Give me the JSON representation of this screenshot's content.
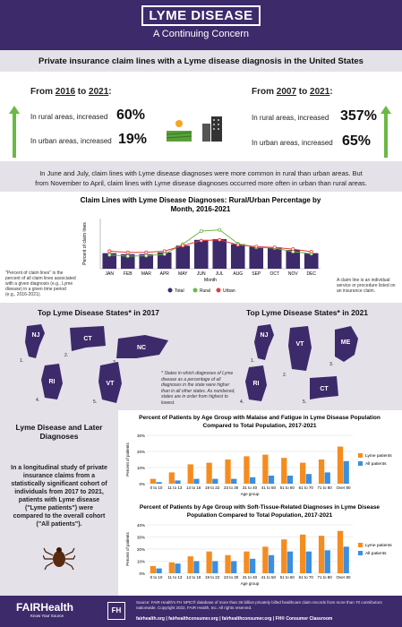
{
  "header": {
    "title": "LYME DISEASE",
    "subtitle": "A Continuing Concern"
  },
  "section1": {
    "title": "Private insurance claim lines with a Lyme disease diagnosis in the United States",
    "left": {
      "period_from": "2016",
      "period_to": "2021",
      "period_prefix": "From ",
      "period_mid": " to ",
      "period_suffix": ":",
      "rural_text": "In rural areas, increased",
      "rural_value": "60%",
      "urban_text": "In urban areas, increased",
      "urban_value": "19%"
    },
    "right": {
      "period_from": "2007",
      "period_to": "2021",
      "period_prefix": "From ",
      "period_mid": " to ",
      "period_suffix": ":",
      "rural_text": "In rural areas, increased",
      "rural_value": "357%",
      "urban_text": "In urban areas, increased",
      "urban_value": "65%"
    }
  },
  "section2": {
    "intro_line1": "In June and July, claim lines with Lyme disease diagnoses were more common in rural than urban areas. But",
    "intro_line2": "from November to April, claim lines with Lyme disease diagnoses occurred more often in urban than rural areas.",
    "note_left": "\"Percent of claim lines\" is the percent of all claim lines associated with a given diagnosis (e.g., Lyme disease) in a given time period (e.g., 2016-2021).",
    "note_right": "A claim line is an individual service or procedure listed on an insurance claim."
  },
  "section3": {
    "title_2017": "Top Lyme Disease States* in 2017",
    "title_2021": "Top Lyme Disease States* in 2021",
    "states_2017": [
      "NJ",
      "CT",
      "NC",
      "RI",
      "VT"
    ],
    "states_2021": [
      "NJ",
      "VT",
      "ME",
      "RI",
      "CT"
    ],
    "ranks": [
      "1.",
      "2.",
      "3.",
      "4.",
      "5."
    ],
    "note": "* States in which diagnoses of Lyme disease as a percentage of all diagnoses in the state were higher than in all other states. As numbered, states are in order from highest to lowest."
  },
  "section4": {
    "title": "Lyme Disease and Later Diagnoses",
    "body": "In a longitudinal study of private insurance claims from a statistically significant cohort of individuals from 2017 to 2021, patients with Lyme disease (\"Lyme patients\") were compared to the overall cohort (\"All patients\")."
  },
  "footer": {
    "logo": "FAIRHealth",
    "tagline": "Know Your Source",
    "mark": "FH",
    "source": "Source: FAIR Health's FH NPIC® database of more than 36 billion privately billed healthcare claim records from more than 70 contributors nationwide. Copyright 2022, FAIR Health, Inc. All rights reserved.",
    "links": "fairhealth.org  |  fairhealthconsumer.org  |  fairhealthconsumer.org  |  FH® Consumer Classroom"
  },
  "colors": {
    "header": "#3d2a6b",
    "bar": "#3d2a6b",
    "rural": "#6ab945",
    "urban": "#e23b3b",
    "lyme": "#f58c1f",
    "all": "#3b8fe0",
    "arrow": "#6ab945"
  },
  "chart_data": [
    {
      "type": "bar",
      "title": "Claim Lines with Lyme Disease Diagnoses: Rural/Urban Percentage by Month, 2016-2021",
      "xlabel": "Month",
      "ylabel": "Percent of claim lines",
      "categories": [
        "JAN",
        "FEB",
        "MAR",
        "APR",
        "MAY",
        "JUN",
        "JUL",
        "AUG",
        "SEP",
        "OCT",
        "NOV",
        "DEC"
      ],
      "ylim": [
        0,
        0.02
      ],
      "series": [
        {
          "name": "Total",
          "type": "bar",
          "values": [
            0.0062,
            0.0058,
            0.0058,
            0.0065,
            0.0092,
            0.0115,
            0.0118,
            0.0098,
            0.0088,
            0.0085,
            0.0075,
            0.0062
          ]
        },
        {
          "name": "Rural",
          "type": "line",
          "values": [
            0.0055,
            0.005,
            0.0052,
            0.0058,
            0.0098,
            0.015,
            0.0155,
            0.01,
            0.0085,
            0.0082,
            0.0068,
            0.006
          ]
        },
        {
          "name": "Urban",
          "type": "line",
          "values": [
            0.007,
            0.0065,
            0.0065,
            0.007,
            0.0092,
            0.0112,
            0.0115,
            0.0095,
            0.0088,
            0.0085,
            0.0078,
            0.0068
          ]
        }
      ],
      "legend": "bottom"
    },
    {
      "type": "bar",
      "title": "Percent of Patients by Age Group with Malaise and Fatigue in Lyme Disease Population Compared to Total Population, 2017-2021",
      "xlabel": "Age group",
      "ylabel": "Percent of patients",
      "yticks": [
        "0%",
        "10%",
        "20%",
        "30%"
      ],
      "ylim": [
        0,
        30
      ],
      "categories": [
        "0 to 10",
        "11 to 13",
        "14 to 18",
        "19 to 22",
        "23 to 30",
        "31 to 40",
        "41 to 50",
        "51 to 60",
        "61 to 70",
        "71 to 80",
        "Over 80"
      ],
      "series": [
        {
          "name": "Lyme patients",
          "values": [
            3,
            7,
            12,
            13,
            15,
            17,
            18,
            16,
            13,
            15,
            23
          ]
        },
        {
          "name": "All patients",
          "values": [
            1,
            2,
            3,
            3,
            3,
            4,
            5,
            5,
            6,
            7,
            14
          ]
        }
      ],
      "legend": "right"
    },
    {
      "type": "bar",
      "title": "Percent of Patients by Age Group with Soft-Tissue-Related Diagnoses in Lyme Disease Population Compared to Total Population, 2017-2021",
      "xlabel": "Age group",
      "ylabel": "Percent of patients",
      "yticks": [
        "0%",
        "10%",
        "20%",
        "30%",
        "40%"
      ],
      "ylim": [
        0,
        40
      ],
      "categories": [
        "0 to 10",
        "11 to 13",
        "14 to 18",
        "19 to 22",
        "23 to 30",
        "31 to 40",
        "41 to 50",
        "51 to 60",
        "61 to 70",
        "71 to 80",
        "Over 80"
      ],
      "series": [
        {
          "name": "Lyme patients",
          "values": [
            6,
            9,
            14,
            18,
            15,
            18,
            22,
            28,
            32,
            31,
            35
          ]
        },
        {
          "name": "All patients",
          "values": [
            4,
            8,
            10,
            10,
            10,
            12,
            15,
            18,
            18,
            19,
            22
          ]
        }
      ],
      "legend": "right"
    }
  ]
}
